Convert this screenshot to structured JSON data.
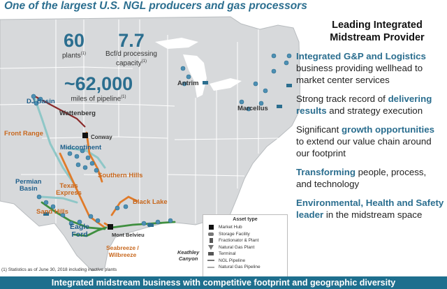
{
  "title": "One of the largest U.S. NGL producers and gas processors",
  "stats": {
    "plants_value": "60",
    "plants_label": "plants",
    "plants_sup": "(1)",
    "capacity_value": "7.7",
    "capacity_label_line1": "Bcf/d processing",
    "capacity_label_line2": "capacity",
    "capacity_sup": "(1)",
    "pipeline_value": "~62,000",
    "pipeline_label": "miles of pipeline",
    "pipeline_sup": "(1)"
  },
  "map_labels": {
    "dj_basin": "DJ Basin",
    "wattenberg": "Wattenberg",
    "conway": "Conway",
    "front_range": "Front Range",
    "midcontinent": "Midcontinent",
    "southern_hills": "Southern Hills",
    "permian_basin_1": "Permian",
    "permian_basin_2": "Basin",
    "texas_express_1": "Texas",
    "texas_express_2": "Express",
    "sand_hills": "Sand Hills",
    "eagle_ford_1": "Eagle",
    "eagle_ford_2": "Ford",
    "black_lake": "Black Lake",
    "mont_belvieu": "Mont Belvieu",
    "seabreeze_1": "Seabreeze /",
    "seabreeze_2": "Wilbreeze",
    "keathley_1": "Keathley",
    "keathley_2": "Canyon",
    "antrim": "Antrim",
    "marcellus": "Marcellus"
  },
  "legend": {
    "title": "Asset type",
    "items": [
      {
        "label": "Market Hub",
        "icon": "market-hub-icon"
      },
      {
        "label": "Storage Facility",
        "icon": "storage-facility-icon"
      },
      {
        "label": "Fractionator & Plant",
        "icon": "fractionator-icon"
      },
      {
        "label": "Natural Gas Plant",
        "icon": "gas-plant-icon"
      },
      {
        "label": "Terminal",
        "icon": "terminal-icon"
      },
      {
        "label": "NGL Pipeline",
        "icon": "ngl-pipeline-icon"
      },
      {
        "label": "Natural Gas Pipeline",
        "icon": "gas-pipeline-icon"
      }
    ]
  },
  "footnote": "(1)   Statistics as of June 30, 2018 including inactive plants",
  "right_heading_line1": "Leading Integrated",
  "right_heading_line2": "Midstream Provider",
  "bullets": {
    "b1_hl": "Integrated G&P and Logistics",
    "b1_rest": " business providing wellhead to market center services",
    "b2_pre": "Strong track record of ",
    "b2_hl": "delivering results",
    "b2_rest": " and strategy execution",
    "b3_pre": "Significant ",
    "b3_hl": "growth opportunities",
    "b3_rest": " to extend our value chain around our footprint",
    "b4_hl": "Transforming",
    "b4_rest": " people, process, and technology",
    "b5_hl": "Environmental, Health and Safety leader",
    "b5_rest": " in the midstream space"
  },
  "bottom_banner": "Integrated midstream business with competitive footprint and geographic diversity",
  "colors": {
    "accent": "#2b6e8f",
    "banner": "#1e6f8e",
    "ngl_pipeline": "#e07b2a",
    "gas_pipeline": "#8fc7c7",
    "wattenberg_pipeline": "#8a2b2b",
    "green_pipeline": "#3f8f3f"
  }
}
